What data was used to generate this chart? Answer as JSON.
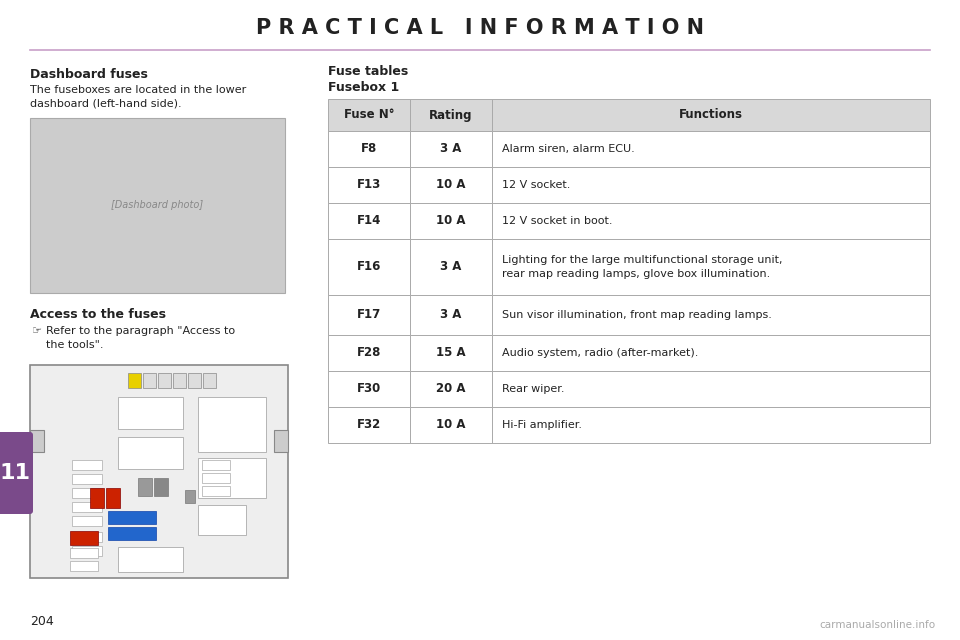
{
  "page_title": "P R A C T I C A L   I N F O R M A T I O N",
  "title_color": "#222222",
  "separator_color": "#c8a0c8",
  "bg_color": "#ffffff",
  "left_section": {
    "heading": "Dashboard fuses",
    "body_text": "The fuseboxes are located in the lower\ndashboard (left-hand side).",
    "subheading": "Access to the fuses",
    "bullet_text": "Refer to the paragraph \"Access to\nthe tools\"."
  },
  "right_section": {
    "label1": "Fuse tables",
    "label2": "Fusebox 1",
    "table_header": [
      "Fuse N°",
      "Rating",
      "Functions"
    ],
    "table_rows": [
      [
        "F8",
        "3 A",
        "Alarm siren, alarm ECU."
      ],
      [
        "F13",
        "10 A",
        "12 V socket."
      ],
      [
        "F14",
        "10 A",
        "12 V socket in boot."
      ],
      [
        "F16",
        "3 A",
        "Lighting for the large multifunctional storage unit,\nrear map reading lamps, glove box illumination."
      ],
      [
        "F17",
        "3 A",
        "Sun visor illumination, front map reading lamps."
      ],
      [
        "F28",
        "15 A",
        "Audio system, radio (after-market)."
      ],
      [
        "F30",
        "20 A",
        "Rear wiper."
      ],
      [
        "F32",
        "10 A",
        "Hi-Fi amplifier."
      ]
    ],
    "header_bg": "#d8d8d8",
    "row_bg": "#ffffff",
    "border_color": "#aaaaaa"
  },
  "page_number": "204",
  "chapter_number": "11",
  "chapter_bg": "#7a4a8a",
  "watermark": "carmanualsonline.info"
}
